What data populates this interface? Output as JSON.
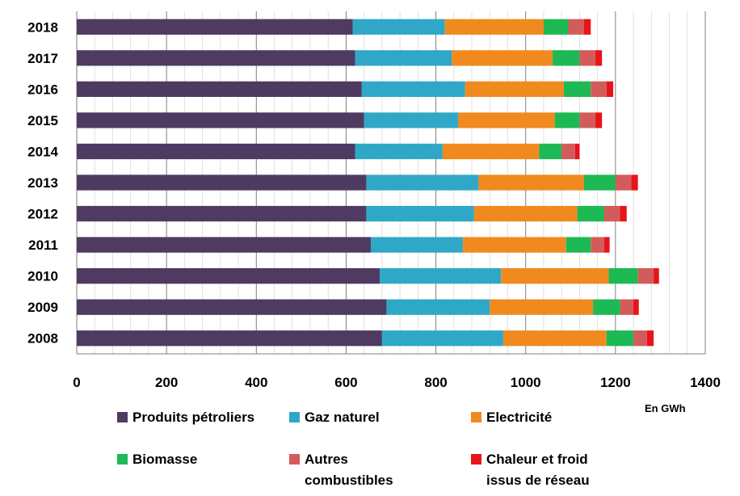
{
  "chart_data": {
    "type": "bar",
    "orientation": "horizontal",
    "stacked": true,
    "categories": [
      "2018",
      "2017",
      "2016",
      "2015",
      "2014",
      "2013",
      "2012",
      "2011",
      "2010",
      "2009",
      "2008"
    ],
    "series": [
      {
        "name": "Produits pétroliers",
        "color": "#4F3B61",
        "values": [
          615,
          620,
          635,
          640,
          620,
          645,
          645,
          655,
          675,
          690,
          680
        ]
      },
      {
        "name": "Gaz naturel",
        "color": "#2FA8C8",
        "values": [
          205,
          215,
          230,
          210,
          195,
          250,
          240,
          205,
          270,
          230,
          270
        ]
      },
      {
        "name": "Electricité",
        "color": "#F08A1E",
        "values": [
          220,
          225,
          220,
          215,
          215,
          235,
          230,
          230,
          240,
          230,
          230
        ]
      },
      {
        "name": "Biomasse",
        "color": "#1DB954",
        "values": [
          55,
          60,
          60,
          55,
          50,
          70,
          60,
          55,
          65,
          60,
          60
        ]
      },
      {
        "name": "Autres combustibles",
        "color": "#D45B5B",
        "values": [
          35,
          35,
          35,
          35,
          30,
          35,
          35,
          30,
          35,
          30,
          30
        ]
      },
      {
        "name": "Chaleur et froid issus de réseau",
        "color": "#E8141B",
        "values": [
          15,
          15,
          15,
          15,
          10,
          15,
          15,
          12,
          12,
          12,
          15
        ]
      }
    ],
    "xlim": [
      0,
      1400
    ],
    "x_ticks": [
      "0",
      "200",
      "400",
      "600",
      "800",
      "1000",
      "1200",
      "1400"
    ],
    "unit_label": "En GWh",
    "grid": true,
    "legend_position": "bottom"
  },
  "legend": [
    {
      "label_lines": [
        "Produits pétroliers"
      ]
    },
    {
      "label_lines": [
        "Gaz naturel"
      ]
    },
    {
      "label_lines": [
        "Electricité"
      ]
    },
    {
      "label_lines": [
        "Biomasse"
      ]
    },
    {
      "label_lines": [
        "Autres",
        "combustibles"
      ]
    },
    {
      "label_lines": [
        "Chaleur et froid",
        "issus de réseau"
      ]
    }
  ]
}
